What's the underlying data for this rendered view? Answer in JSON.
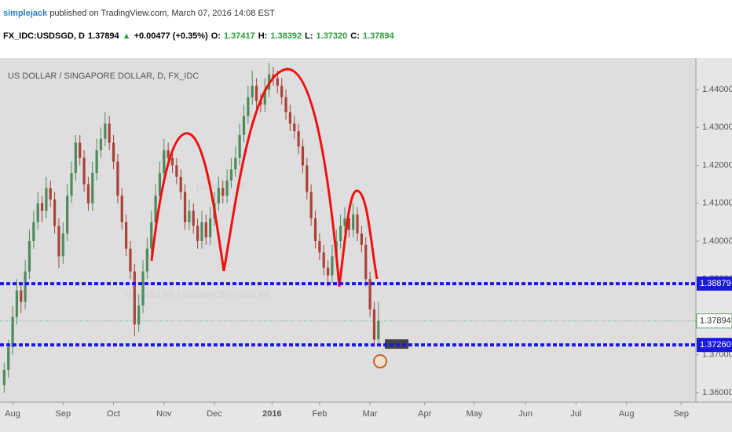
{
  "chart_data": {
    "type": "candlestick",
    "author": "simplejack",
    "published": "published on TradingView.com, March 07, 2016 14:08 EST",
    "quote": [
      {
        "text": "FX_IDC:USDSGD, D",
        "color": "#000000"
      },
      {
        "text": "1.37894",
        "color": "#000000"
      },
      {
        "text": "▲",
        "color": "#2a9d3a"
      },
      {
        "text": "+0.00477 (+0.35%)",
        "color": "#000000"
      },
      {
        "text": "O:",
        "color": "#000000"
      },
      {
        "text": "1.37417",
        "color": "#2a9d3a"
      },
      {
        "text": "H:",
        "color": "#000000"
      },
      {
        "text": "1.38392",
        "color": "#2a9d3a"
      },
      {
        "text": "L:",
        "color": "#000000"
      },
      {
        "text": "1.37320",
        "color": "#2a9d3a"
      },
      {
        "text": "C:",
        "color": "#000000"
      },
      {
        "text": "1.37894",
        "color": "#2a9d3a"
      }
    ],
    "title": "US DOLLAR / SINGAPORE DOLLAR, D, FX_IDC",
    "watermark": "USDSGD, D",
    "watermark_subtitle": "US DOLLAR / SINGAPORE DOLLAR",
    "up_color": "#4f8a5c",
    "down_color": "#a8423a",
    "xlim": [
      -1,
      164.5
    ],
    "xticks": [
      {
        "value": 2,
        "label": "Aug"
      },
      {
        "value": 14,
        "label": "Sep"
      },
      {
        "value": 26,
        "label": "Oct"
      },
      {
        "value": 38,
        "label": "Nov"
      },
      {
        "value": 50,
        "label": "Dec"
      },
      {
        "value": 63.7,
        "label": "2016"
      },
      {
        "value": 75,
        "label": "Feb"
      },
      {
        "value": 87,
        "label": "Mar"
      },
      {
        "value": 100,
        "label": "Apr"
      },
      {
        "value": 111.8,
        "label": "May"
      },
      {
        "value": 124,
        "label": "Jun"
      },
      {
        "value": 136,
        "label": "Jul"
      },
      {
        "value": 148,
        "label": "Aug"
      },
      {
        "value": 161,
        "label": "Sep"
      }
    ],
    "ylim": [
      1.3575,
      1.4483
    ],
    "yticks": [
      {
        "value": 1.44,
        "label": "1.44000"
      },
      {
        "value": 1.43,
        "label": "1.43000"
      },
      {
        "value": 1.42,
        "label": "1.42000"
      },
      {
        "value": 1.41,
        "label": "1.41000"
      },
      {
        "value": 1.4,
        "label": "1.40000"
      },
      {
        "value": 1.39,
        "label": "1.39000"
      },
      {
        "value": 1.38,
        "label": "1.38000"
      },
      {
        "value": 1.37,
        "label": "1.37000"
      },
      {
        "value": 1.36,
        "label": "1.36000"
      }
    ],
    "hlines": [
      {
        "value": 1.38879,
        "label": "1.38879",
        "color": "#1a1adb"
      },
      {
        "value": 1.3726,
        "label": "1.37260",
        "color": "#1a1adb"
      }
    ],
    "last_price": {
      "value": 1.37894,
      "label": "1.37894",
      "color": "#5aa06a"
    },
    "candles": [
      [
        1.362,
        1.368,
        1.36,
        1.366
      ],
      [
        1.366,
        1.374,
        1.364,
        1.372
      ],
      [
        1.372,
        1.383,
        1.37,
        1.38
      ],
      [
        1.38,
        1.39,
        1.378,
        1.387
      ],
      [
        1.387,
        1.389,
        1.381,
        1.384
      ],
      [
        1.384,
        1.395,
        1.382,
        1.392
      ],
      [
        1.392,
        1.403,
        1.39,
        1.4
      ],
      [
        1.4,
        1.408,
        1.398,
        1.405
      ],
      [
        1.405,
        1.413,
        1.403,
        1.41
      ],
      [
        1.41,
        1.412,
        1.405,
        1.408
      ],
      [
        1.408,
        1.417,
        1.406,
        1.414
      ],
      [
        1.414,
        1.416,
        1.409,
        1.411
      ],
      [
        1.411,
        1.413,
        1.402,
        1.404
      ],
      [
        1.404,
        1.406,
        1.393,
        1.396
      ],
      [
        1.396,
        1.405,
        1.394,
        1.402
      ],
      [
        1.402,
        1.415,
        1.4,
        1.412
      ],
      [
        1.412,
        1.421,
        1.41,
        1.418
      ],
      [
        1.418,
        1.428,
        1.416,
        1.426
      ],
      [
        1.426,
        1.428,
        1.42,
        1.422
      ],
      [
        1.422,
        1.424,
        1.413,
        1.415
      ],
      [
        1.415,
        1.417,
        1.408,
        1.41
      ],
      [
        1.41,
        1.421,
        1.408,
        1.418
      ],
      [
        1.418,
        1.427,
        1.416,
        1.424
      ],
      [
        1.424,
        1.43,
        1.422,
        1.427
      ],
      [
        1.427,
        1.434,
        1.425,
        1.431
      ],
      [
        1.431,
        1.433,
        1.424,
        1.426
      ],
      [
        1.426,
        1.428,
        1.419,
        1.421
      ],
      [
        1.421,
        1.423,
        1.41,
        1.412
      ],
      [
        1.412,
        1.414,
        1.403,
        1.405
      ],
      [
        1.405,
        1.407,
        1.396,
        1.398
      ],
      [
        1.398,
        1.4,
        1.39,
        1.392
      ],
      [
        1.392,
        1.394,
        1.375,
        1.378
      ],
      [
        1.378,
        1.386,
        1.376,
        1.383
      ],
      [
        1.383,
        1.395,
        1.381,
        1.392
      ],
      [
        1.392,
        1.401,
        1.39,
        1.398
      ],
      [
        1.398,
        1.408,
        1.396,
        1.405
      ],
      [
        1.405,
        1.415,
        1.403,
        1.412
      ],
      [
        1.412,
        1.421,
        1.41,
        1.418
      ],
      [
        1.418,
        1.427,
        1.416,
        1.424
      ],
      [
        1.424,
        1.426,
        1.42,
        1.422
      ],
      [
        1.422,
        1.424,
        1.418,
        1.42
      ],
      [
        1.42,
        1.422,
        1.415,
        1.417
      ],
      [
        1.417,
        1.419,
        1.411,
        1.413
      ],
      [
        1.413,
        1.415,
        1.403,
        1.405
      ],
      [
        1.405,
        1.411,
        1.403,
        1.408
      ],
      [
        1.408,
        1.41,
        1.402,
        1.404
      ],
      [
        1.404,
        1.406,
        1.398,
        1.4
      ],
      [
        1.4,
        1.408,
        1.398,
        1.405
      ],
      [
        1.405,
        1.407,
        1.399,
        1.401
      ],
      [
        1.401,
        1.409,
        1.399,
        1.406
      ],
      [
        1.406,
        1.413,
        1.404,
        1.41
      ],
      [
        1.41,
        1.417,
        1.408,
        1.414
      ],
      [
        1.414,
        1.416,
        1.41,
        1.412
      ],
      [
        1.412,
        1.419,
        1.41,
        1.416
      ],
      [
        1.416,
        1.422,
        1.414,
        1.419
      ],
      [
        1.419,
        1.425,
        1.417,
        1.422
      ],
      [
        1.422,
        1.431,
        1.42,
        1.428
      ],
      [
        1.428,
        1.436,
        1.426,
        1.433
      ],
      [
        1.433,
        1.441,
        1.431,
        1.438
      ],
      [
        1.438,
        1.445,
        1.436,
        1.441
      ],
      [
        1.441,
        1.443,
        1.435,
        1.437
      ],
      [
        1.437,
        1.439,
        1.434,
        1.436
      ],
      [
        1.436,
        1.443,
        1.434,
        1.44
      ],
      [
        1.44,
        1.447,
        1.438,
        1.444
      ],
      [
        1.444,
        1.446,
        1.441,
        1.443
      ],
      [
        1.443,
        1.445,
        1.439,
        1.441
      ],
      [
        1.441,
        1.443,
        1.436,
        1.438
      ],
      [
        1.438,
        1.44,
        1.432,
        1.434
      ],
      [
        1.434,
        1.436,
        1.429,
        1.431
      ],
      [
        1.431,
        1.433,
        1.427,
        1.429
      ],
      [
        1.429,
        1.431,
        1.423,
        1.425
      ],
      [
        1.425,
        1.427,
        1.418,
        1.42
      ],
      [
        1.42,
        1.422,
        1.411,
        1.413
      ],
      [
        1.413,
        1.415,
        1.404,
        1.406
      ],
      [
        1.406,
        1.408,
        1.398,
        1.4
      ],
      [
        1.4,
        1.402,
        1.395,
        1.397
      ],
      [
        1.397,
        1.399,
        1.391,
        1.393
      ],
      [
        1.393,
        1.395,
        1.388,
        1.391
      ],
      [
        1.391,
        1.399,
        1.389,
        1.396
      ],
      [
        1.396,
        1.403,
        1.394,
        1.4
      ],
      [
        1.4,
        1.407,
        1.398,
        1.404
      ],
      [
        1.404,
        1.409,
        1.402,
        1.406
      ],
      [
        1.406,
        1.408,
        1.401,
        1.403
      ],
      [
        1.403,
        1.41,
        1.401,
        1.407
      ],
      [
        1.407,
        1.409,
        1.4,
        1.402
      ],
      [
        1.402,
        1.404,
        1.397,
        1.399
      ],
      [
        1.399,
        1.401,
        1.388,
        1.39
      ],
      [
        1.39,
        1.392,
        1.38,
        1.382
      ],
      [
        1.382,
        1.384,
        1.372,
        1.374
      ],
      [
        1.37417,
        1.38392,
        1.3732,
        1.37894
      ]
    ]
  }
}
